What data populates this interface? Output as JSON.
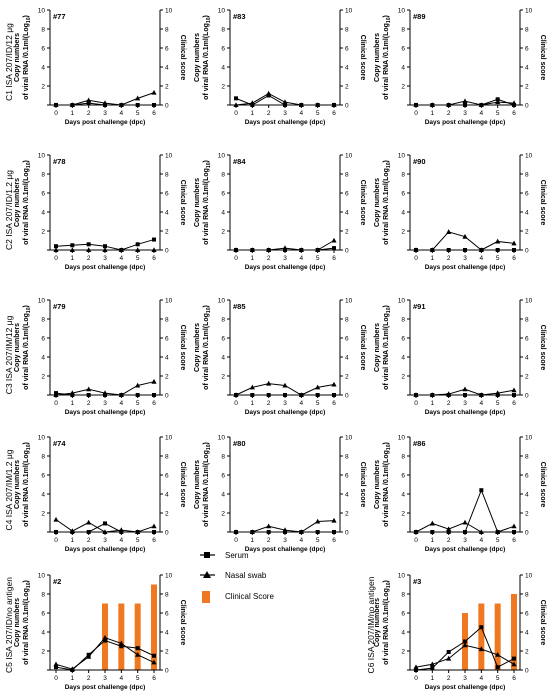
{
  "figure": {
    "x_axis_label": "Days post challenge (dpc)",
    "left_axis_label_line1": "Copy numbers",
    "left_axis_label_line2": "of viral RNA /0.1ml(Log",
    "left_axis_label_sub": "10",
    "right_axis_label": "Clinical score",
    "colors": {
      "serum": "#000000",
      "nasal": "#000000",
      "score": "#f07820"
    }
  },
  "legend": [
    {
      "name": "Serum",
      "marker": "square"
    },
    {
      "name": "Nasal swab",
      "marker": "triangle"
    },
    {
      "name": "Clinical Score",
      "marker": "bar"
    }
  ],
  "rows": [
    {
      "label": "C1 ISA 207/ID/12 μg"
    },
    {
      "label": "C2 ISA 207/ID/1.2 μg"
    },
    {
      "label": "C3 ISA 207/IM/12 μg"
    },
    {
      "label": "C4 ISA 207/IM/1.2 μg"
    },
    {
      "label": "C5 ISA 207/ID/no antigen"
    },
    {
      "label": "C6 ISA 207/IM/no antigen"
    }
  ],
  "chart_data": [
    {
      "type": "line",
      "id": "#77",
      "x": [
        0,
        1,
        2,
        3,
        4,
        5,
        6
      ],
      "ylim": [
        0,
        10
      ],
      "y2lim": [
        0,
        10
      ],
      "series": [
        {
          "name": "Serum",
          "values": [
            0,
            0,
            0.2,
            0,
            0,
            0,
            0
          ]
        },
        {
          "name": "Nasal swab",
          "values": [
            0,
            0,
            0.5,
            0.2,
            0,
            0.7,
            1.3
          ]
        }
      ],
      "clinical_score": []
    },
    {
      "type": "line",
      "id": "#83",
      "x": [
        0,
        1,
        2,
        3,
        4,
        5,
        6
      ],
      "ylim": [
        0,
        10
      ],
      "y2lim": [
        0,
        10
      ],
      "series": [
        {
          "name": "Serum",
          "values": [
            0.7,
            0,
            1.0,
            0,
            0,
            0,
            0
          ]
        },
        {
          "name": "Nasal swab",
          "values": [
            0,
            0.2,
            1.2,
            0.3,
            0,
            0,
            0
          ]
        }
      ],
      "clinical_score": []
    },
    {
      "type": "line",
      "id": "#89",
      "x": [
        0,
        1,
        2,
        3,
        4,
        5,
        6
      ],
      "ylim": [
        0,
        10
      ],
      "y2lim": [
        0,
        10
      ],
      "series": [
        {
          "name": "Serum",
          "values": [
            0,
            0,
            0,
            0,
            0,
            0.6,
            0
          ]
        },
        {
          "name": "Nasal swab",
          "values": [
            0,
            0,
            0,
            0.4,
            0,
            0.3,
            0.2
          ]
        }
      ],
      "clinical_score": []
    },
    {
      "type": "line",
      "id": "#78",
      "x": [
        0,
        1,
        2,
        3,
        4,
        5,
        6
      ],
      "ylim": [
        0,
        10
      ],
      "y2lim": [
        0,
        10
      ],
      "series": [
        {
          "name": "Serum",
          "values": [
            0.4,
            0.5,
            0.6,
            0.4,
            0,
            0.6,
            1.1
          ]
        },
        {
          "name": "Nasal swab",
          "values": [
            0,
            0,
            0,
            0,
            0,
            0,
            0
          ]
        }
      ],
      "clinical_score": []
    },
    {
      "type": "line",
      "id": "#84",
      "x": [
        0,
        1,
        2,
        3,
        4,
        5,
        6
      ],
      "ylim": [
        0,
        10
      ],
      "y2lim": [
        0,
        10
      ],
      "series": [
        {
          "name": "Serum",
          "values": [
            0,
            0,
            0,
            0,
            0,
            0,
            0.2
          ]
        },
        {
          "name": "Nasal swab",
          "values": [
            0,
            0,
            0,
            0.2,
            0,
            0,
            1.0
          ]
        }
      ],
      "clinical_score": []
    },
    {
      "type": "line",
      "id": "#90",
      "x": [
        0,
        1,
        2,
        3,
        4,
        5,
        6
      ],
      "ylim": [
        0,
        10
      ],
      "y2lim": [
        0,
        10
      ],
      "series": [
        {
          "name": "Serum",
          "values": [
            0,
            0,
            0,
            0,
            0,
            0,
            0
          ]
        },
        {
          "name": "Nasal swab",
          "values": [
            0,
            0,
            1.9,
            1.4,
            0,
            0.9,
            0.7
          ]
        }
      ],
      "clinical_score": []
    },
    {
      "type": "line",
      "id": "#79",
      "x": [
        0,
        1,
        2,
        3,
        4,
        5,
        6
      ],
      "ylim": [
        0,
        10
      ],
      "y2lim": [
        0,
        10
      ],
      "series": [
        {
          "name": "Serum",
          "values": [
            0.2,
            0,
            0,
            0,
            0,
            0,
            0
          ]
        },
        {
          "name": "Nasal swab",
          "values": [
            0,
            0.2,
            0.6,
            0.2,
            0,
            1.0,
            1.4
          ]
        }
      ],
      "clinical_score": []
    },
    {
      "type": "line",
      "id": "#85",
      "x": [
        0,
        1,
        2,
        3,
        4,
        5,
        6
      ],
      "ylim": [
        0,
        10
      ],
      "y2lim": [
        0,
        10
      ],
      "series": [
        {
          "name": "Serum",
          "values": [
            0,
            0,
            0,
            0,
            0,
            0,
            0
          ]
        },
        {
          "name": "Nasal swab",
          "values": [
            0,
            0.8,
            1.2,
            1.0,
            0,
            0.8,
            1.1
          ]
        }
      ],
      "clinical_score": []
    },
    {
      "type": "line",
      "id": "#91",
      "x": [
        0,
        1,
        2,
        3,
        4,
        5,
        6
      ],
      "ylim": [
        0,
        10
      ],
      "y2lim": [
        0,
        10
      ],
      "series": [
        {
          "name": "Serum",
          "values": [
            0,
            0,
            0,
            0,
            0,
            0,
            0
          ]
        },
        {
          "name": "Nasal swab",
          "values": [
            0,
            0,
            0.1,
            0.6,
            0,
            0.2,
            0.5
          ]
        }
      ],
      "clinical_score": []
    },
    {
      "type": "line",
      "id": "#74",
      "x": [
        0,
        1,
        2,
        3,
        4,
        5,
        6
      ],
      "ylim": [
        0,
        10
      ],
      "y2lim": [
        0,
        10
      ],
      "series": [
        {
          "name": "Serum",
          "values": [
            0,
            0,
            0,
            0.9,
            0,
            0,
            0
          ]
        },
        {
          "name": "Nasal swab",
          "values": [
            1.3,
            0.1,
            1.0,
            0,
            0.2,
            0,
            0.6
          ]
        }
      ],
      "clinical_score": []
    },
    {
      "type": "line",
      "id": "#80",
      "x": [
        0,
        1,
        2,
        3,
        4,
        5,
        6
      ],
      "ylim": [
        0,
        10
      ],
      "y2lim": [
        0,
        10
      ],
      "series": [
        {
          "name": "Serum",
          "values": [
            0,
            0,
            0,
            0,
            0,
            0,
            0
          ]
        },
        {
          "name": "Nasal swab",
          "values": [
            0,
            0,
            0.6,
            0.2,
            0,
            1.1,
            1.2
          ]
        }
      ],
      "clinical_score": []
    },
    {
      "type": "line",
      "id": "#86",
      "x": [
        0,
        1,
        2,
        3,
        4,
        5,
        6
      ],
      "ylim": [
        0,
        10
      ],
      "y2lim": [
        0,
        10
      ],
      "series": [
        {
          "name": "Serum",
          "values": [
            0,
            0,
            0,
            0,
            4.4,
            0,
            0
          ]
        },
        {
          "name": "Nasal swab",
          "values": [
            0,
            0.9,
            0.3,
            1.0,
            0,
            0,
            0.6
          ]
        }
      ],
      "clinical_score": []
    },
    {
      "type": "line",
      "id": "#2",
      "x": [
        0,
        1,
        2,
        3,
        4,
        5,
        6
      ],
      "ylim": [
        0,
        10
      ],
      "y2lim": [
        0,
        10
      ],
      "series": [
        {
          "name": "Serum",
          "values": [
            0.3,
            0,
            1.6,
            3.1,
            2.5,
            2.3,
            1.5
          ]
        },
        {
          "name": "Nasal swab",
          "values": [
            0.6,
            0.1,
            1.4,
            3.4,
            2.8,
            1.6,
            0.8
          ]
        }
      ],
      "clinical_score": [
        0,
        0,
        0,
        7,
        7,
        7,
        9
      ]
    },
    {
      "type": "line",
      "id": "#3",
      "x": [
        0,
        1,
        2,
        3,
        4,
        5,
        6
      ],
      "ylim": [
        0,
        10
      ],
      "y2lim": [
        0,
        10
      ],
      "series": [
        {
          "name": "Serum",
          "values": [
            0,
            0.2,
            1.9,
            3.0,
            4.5,
            0.3,
            1.2
          ]
        },
        {
          "name": "Nasal swab",
          "values": [
            0.3,
            0.6,
            1.2,
            2.6,
            2.2,
            1.6,
            0.6
          ]
        }
      ],
      "clinical_score": [
        0,
        0,
        0,
        6,
        7,
        7,
        8
      ]
    }
  ]
}
